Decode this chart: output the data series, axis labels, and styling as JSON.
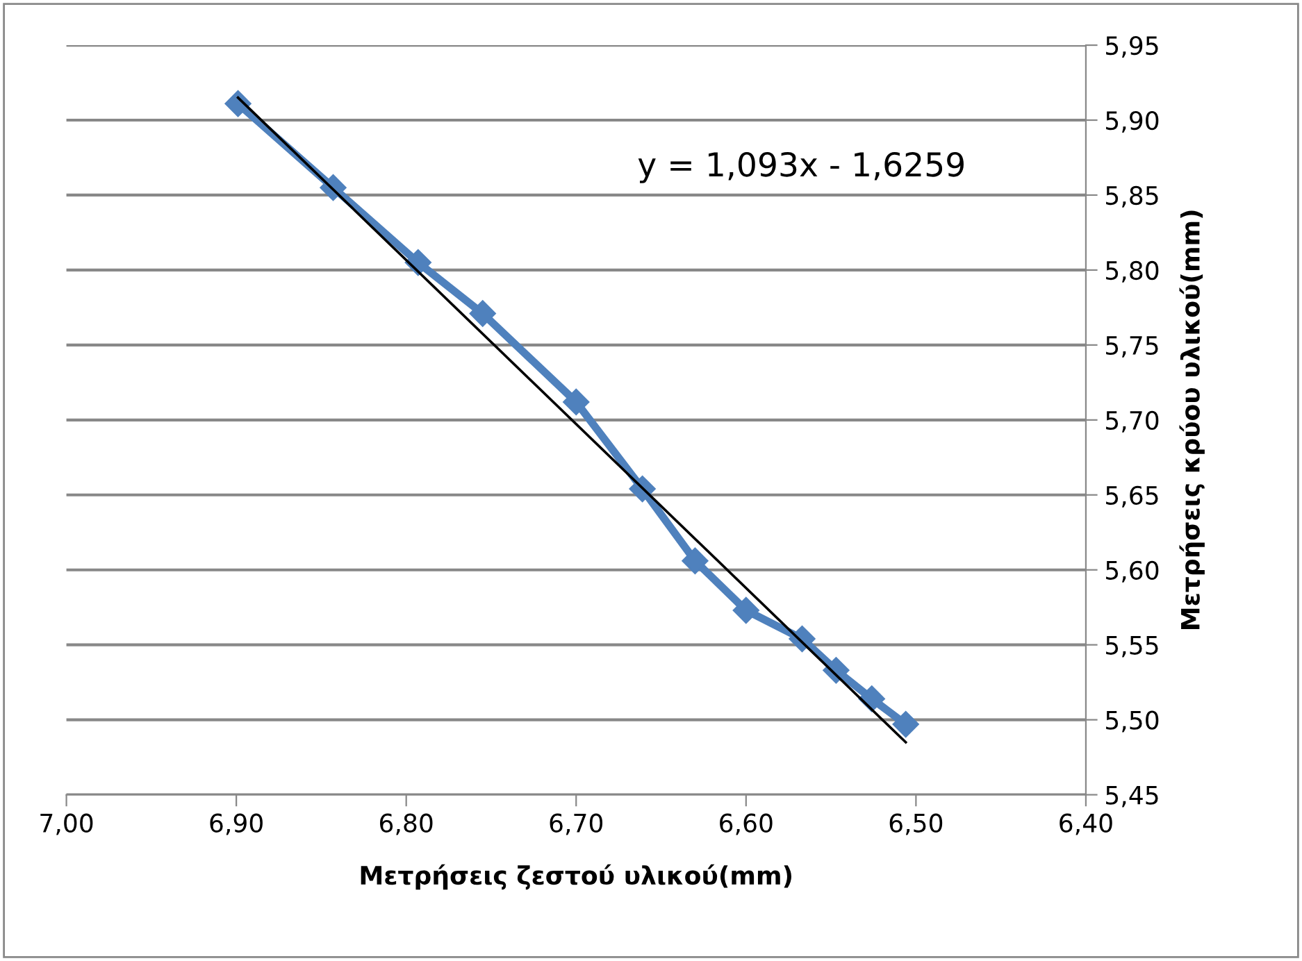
{
  "chart_data": {
    "type": "line",
    "xlabel": "Μετρήσεις ζεστού υλικού(mm)",
    "ylabel": "Μετρήσεις κρύου υλικού(mm)",
    "xlim": [
      7.0,
      6.4
    ],
    "ylim": [
      5.45,
      5.95
    ],
    "xticks": [
      {
        "value": 7.0,
        "label": "7,00"
      },
      {
        "value": 6.9,
        "label": "6,90"
      },
      {
        "value": 6.8,
        "label": "6,80"
      },
      {
        "value": 6.7,
        "label": "6,70"
      },
      {
        "value": 6.6,
        "label": "6,60"
      },
      {
        "value": 6.5,
        "label": "6,50"
      },
      {
        "value": 6.4,
        "label": "6,40"
      }
    ],
    "yticks": [
      {
        "value": 5.45,
        "label": "5,45"
      },
      {
        "value": 5.5,
        "label": "5,50"
      },
      {
        "value": 5.55,
        "label": "5,55"
      },
      {
        "value": 5.6,
        "label": "5,60"
      },
      {
        "value": 5.65,
        "label": "5,65"
      },
      {
        "value": 5.7,
        "label": "5,70"
      },
      {
        "value": 5.75,
        "label": "5,75"
      },
      {
        "value": 5.8,
        "label": "5,80"
      },
      {
        "value": 5.85,
        "label": "5,85"
      },
      {
        "value": 5.9,
        "label": "5,90"
      },
      {
        "value": 5.95,
        "label": "5,95"
      }
    ],
    "grid": "y",
    "legend": false,
    "series": [
      {
        "color": "#4f81bd",
        "marker": "diamond",
        "x": [
          6.899,
          6.843,
          6.793,
          6.755,
          6.7,
          6.661,
          6.63,
          6.6,
          6.567,
          6.547,
          6.526,
          6.506
        ],
        "values": [
          5.911,
          5.855,
          5.805,
          5.771,
          5.712,
          5.654,
          5.606,
          5.573,
          5.554,
          5.533,
          5.514,
          5.497
        ]
      },
      {
        "type": "line",
        "color": "#000000",
        "marker": "none",
        "x": [
          6.899,
          6.506
        ],
        "values": [
          5.915,
          5.485
        ]
      }
    ],
    "annotations": [
      "y = 1,093x - 1,6259"
    ]
  }
}
